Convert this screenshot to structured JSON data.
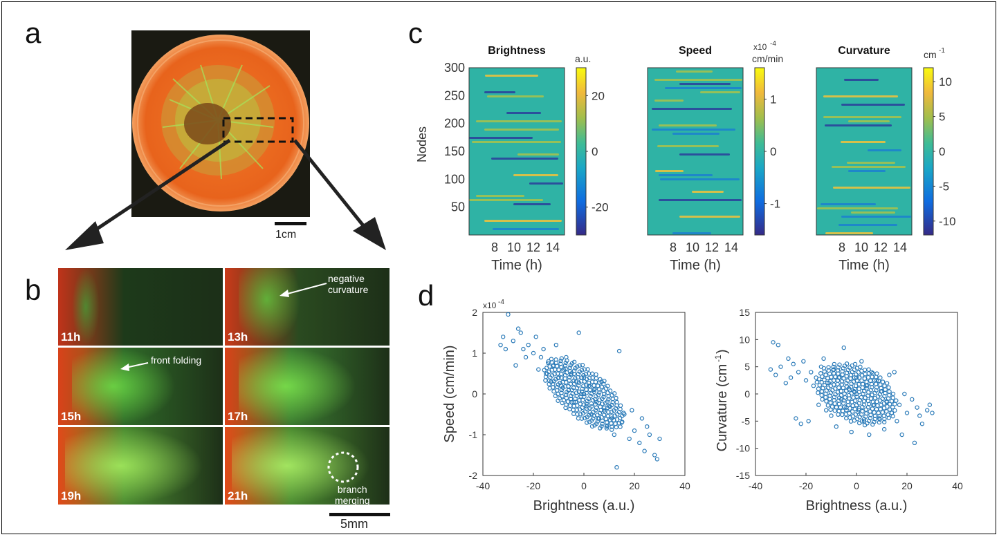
{
  "panels": {
    "a": "a",
    "b": "b",
    "c": "c",
    "d": "d"
  },
  "panel_a": {
    "scale_bar_label": "1cm"
  },
  "panel_b": {
    "tiles": [
      {
        "time": "11h"
      },
      {
        "time": "13h",
        "annotation_line1": "negative",
        "annotation_line2": "curvature"
      },
      {
        "time": "15h",
        "annotation": "front folding"
      },
      {
        "time": "17h"
      },
      {
        "time": "19h"
      },
      {
        "time": "21h",
        "annotation_line1": "branch",
        "annotation_line2": "merging"
      }
    ],
    "scale_bar_label": "5mm"
  },
  "colors": {
    "petri_orange": "#e8631c",
    "bacteria_green": "#7ed43a",
    "scatter_blue": "#2a7ab8",
    "background": "#ffffff"
  },
  "chart_data": [
    {
      "type": "heatmap",
      "title": "Brightness",
      "xlabel": "Time (h)",
      "ylabel": "Nodes",
      "xticks": [
        "8",
        "10",
        "12",
        "14"
      ],
      "yticks": [
        "50",
        "100",
        "150",
        "200",
        "250",
        "300"
      ],
      "ylim": [
        0,
        300
      ],
      "colorbar": {
        "unit": "a.u.",
        "ticks": [
          "20",
          "0",
          "-20"
        ],
        "range": [
          -30,
          30
        ]
      }
    },
    {
      "type": "heatmap",
      "title": "Speed",
      "xlabel": "Time (h)",
      "xticks": [
        "8",
        "10",
        "12",
        "14"
      ],
      "colorbar": {
        "exponent": "x10",
        "exponent_power": "-4",
        "unit": "cm/min",
        "ticks": [
          "1",
          "0",
          "-1"
        ],
        "range": [
          -1.6,
          1.6
        ]
      }
    },
    {
      "type": "heatmap",
      "title": "Curvature",
      "xlabel": "Time (h)",
      "xticks": [
        "8",
        "10",
        "12",
        "14"
      ],
      "colorbar": {
        "unit": "cm",
        "unit_power": "-1",
        "ticks": [
          "10",
          "5",
          "0",
          "-5",
          "-10"
        ],
        "range": [
          -12,
          12
        ]
      }
    },
    {
      "type": "scatter",
      "xlabel": "Brightness (a.u.)",
      "ylabel": "Speed (cm/min)",
      "y_exponent": "x10",
      "y_exponent_power": "-4",
      "xlim": [
        -40,
        40
      ],
      "ylim": [
        -2,
        2
      ],
      "xticks": [
        "-40",
        "-20",
        "0",
        "20",
        "40"
      ],
      "yticks": [
        "-2",
        "-1",
        "0",
        "1",
        "2"
      ],
      "series": [
        {
          "points": [
            [
              -33,
              1.2
            ],
            [
              -32,
              1.4
            ],
            [
              -31,
              1.1
            ],
            [
              -30,
              1.95
            ],
            [
              -28,
              1.3
            ],
            [
              -27,
              0.7
            ],
            [
              -26,
              1.6
            ],
            [
              -25,
              1.5
            ],
            [
              -24,
              1.1
            ],
            [
              -23,
              0.9
            ],
            [
              -22,
              1.2
            ],
            [
              -20,
              1.0
            ],
            [
              -19,
              1.4
            ],
            [
              -18,
              0.6
            ],
            [
              -17,
              0.9
            ],
            [
              -16,
              1.1
            ],
            [
              -15,
              0.5
            ],
            [
              -14,
              0.8
            ],
            [
              -13,
              0.3
            ],
            [
              -12,
              0.7
            ],
            [
              -11,
              1.2
            ],
            [
              -10,
              0.4
            ],
            [
              -9,
              0.2
            ],
            [
              -8,
              0.6
            ],
            [
              -7,
              0.9
            ],
            [
              -6,
              0.1
            ],
            [
              -5,
              0.5
            ],
            [
              -4,
              -0.2
            ],
            [
              -3,
              0.3
            ],
            [
              -2,
              1.5
            ],
            [
              -1,
              0.0
            ],
            [
              0,
              0.4
            ],
            [
              1,
              -0.3
            ],
            [
              2,
              0.2
            ],
            [
              3,
              -0.5
            ],
            [
              4,
              0.1
            ],
            [
              5,
              -0.2
            ],
            [
              6,
              -0.6
            ],
            [
              7,
              0.3
            ],
            [
              8,
              -0.4
            ],
            [
              9,
              -0.8
            ],
            [
              10,
              -0.3
            ],
            [
              11,
              -0.6
            ],
            [
              12,
              -1.0
            ],
            [
              13,
              -1.8
            ],
            [
              14,
              1.05
            ],
            [
              15,
              -0.7
            ],
            [
              16,
              -0.5
            ],
            [
              18,
              -1.1
            ],
            [
              19,
              -0.4
            ],
            [
              20,
              -0.9
            ],
            [
              22,
              -1.2
            ],
            [
              23,
              -0.6
            ],
            [
              24,
              -1.4
            ],
            [
              25,
              -0.8
            ],
            [
              26,
              -1.0
            ],
            [
              28,
              -1.5
            ],
            [
              29,
              -1.6
            ],
            [
              30,
              -1.1
            ]
          ]
        }
      ]
    },
    {
      "type": "scatter",
      "xlabel": "Brightness (a.u.)",
      "ylabel_main": "Curvature (cm",
      "ylabel_power": "-1",
      "ylabel_close": ")",
      "xlim": [
        -40,
        40
      ],
      "ylim": [
        -15,
        15
      ],
      "xticks": [
        "-40",
        "-20",
        "0",
        "20",
        "40"
      ],
      "yticks": [
        "-15",
        "-10",
        "-5",
        "0",
        "5",
        "10",
        "15"
      ],
      "series": [
        {
          "points": [
            [
              -34,
              4.5
            ],
            [
              -33,
              9.5
            ],
            [
              -32,
              3.5
            ],
            [
              -31,
              9.0
            ],
            [
              -30,
              5.0
            ],
            [
              -28,
              2.0
            ],
            [
              -27,
              6.5
            ],
            [
              -26,
              3.0
            ],
            [
              -25,
              5.5
            ],
            [
              -24,
              -4.5
            ],
            [
              -23,
              4.0
            ],
            [
              -22,
              -5.5
            ],
            [
              -21,
              6.0
            ],
            [
              -20,
              2.5
            ],
            [
              -19,
              -5.0
            ],
            [
              -18,
              4.0
            ],
            [
              -17,
              1.5
            ],
            [
              -16,
              3.0
            ],
            [
              -15,
              -2.0
            ],
            [
              -14,
              5.0
            ],
            [
              -13,
              6.5
            ],
            [
              -12,
              -3.0
            ],
            [
              -11,
              2.0
            ],
            [
              -10,
              -4.0
            ],
            [
              -9,
              4.5
            ],
            [
              -8,
              -6.0
            ],
            [
              -7,
              3.0
            ],
            [
              -6,
              -1.0
            ],
            [
              -5,
              8.5
            ],
            [
              -4,
              -2.5
            ],
            [
              -3,
              1.0
            ],
            [
              -2,
              -7.0
            ],
            [
              -1,
              0.5
            ],
            [
              0,
              3.0
            ],
            [
              1,
              -3.0
            ],
            [
              2,
              6.0
            ],
            [
              3,
              -5.0
            ],
            [
              4,
              1.5
            ],
            [
              5,
              -7.5
            ],
            [
              6,
              4.0
            ],
            [
              7,
              -2.0
            ],
            [
              8,
              2.5
            ],
            [
              9,
              -4.5
            ],
            [
              10,
              0.5
            ],
            [
              11,
              -6.5
            ],
            [
              12,
              -1.5
            ],
            [
              13,
              3.5
            ],
            [
              14,
              -3.5
            ],
            [
              15,
              4.0
            ],
            [
              16,
              -5.0
            ],
            [
              17,
              -2.0
            ],
            [
              18,
              -7.5
            ],
            [
              19,
              0.0
            ],
            [
              20,
              -3.5
            ],
            [
              22,
              -1.0
            ],
            [
              23,
              -9.0
            ],
            [
              24,
              -2.5
            ],
            [
              25,
              -4.0
            ],
            [
              26,
              -5.5
            ],
            [
              28,
              -3.0
            ],
            [
              29,
              -2.0
            ],
            [
              30,
              -3.5
            ]
          ]
        }
      ]
    }
  ]
}
